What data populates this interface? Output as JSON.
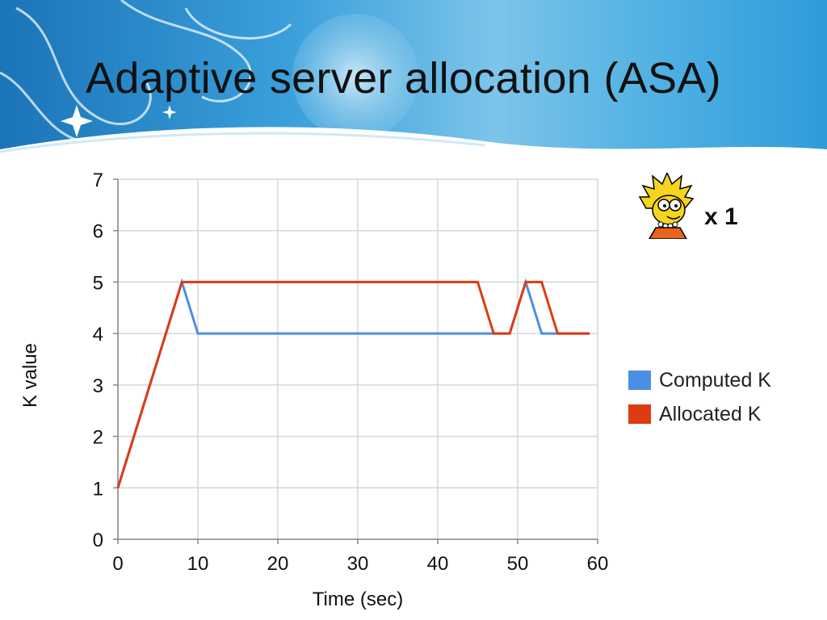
{
  "slide": {
    "title": "Adaptive server allocation (ASA)",
    "multiplier": "x 1"
  },
  "colors": {
    "banner_dark": "#1f7fc4",
    "banner_light": "#9dd3ef",
    "computed": "#4a8ee6",
    "allocated": "#dd3b12",
    "grid": "#d6d6d6"
  },
  "chart_data": {
    "type": "line",
    "xlabel": "Time (sec)",
    "ylabel": "K value",
    "xlim": [
      0,
      60
    ],
    "ylim": [
      0,
      7
    ],
    "xticks": [
      0,
      10,
      20,
      30,
      40,
      50,
      60
    ],
    "yticks": [
      0,
      1,
      2,
      3,
      4,
      5,
      6,
      7
    ],
    "grid": true,
    "legend_position": "right",
    "series": [
      {
        "name": "Computed K",
        "color": "#4a8ee6",
        "x": [
          0,
          8,
          10,
          45,
          47,
          49,
          51,
          53,
          55,
          59
        ],
        "y": [
          1,
          5,
          4,
          4,
          4,
          4,
          5,
          4,
          4,
          4
        ]
      },
      {
        "name": "Allocated K",
        "color": "#dd3b12",
        "x": [
          0,
          8,
          45,
          47,
          49,
          51,
          53,
          55,
          59
        ],
        "y": [
          1,
          5,
          5,
          4,
          4,
          5,
          5,
          4,
          4
        ]
      }
    ]
  }
}
